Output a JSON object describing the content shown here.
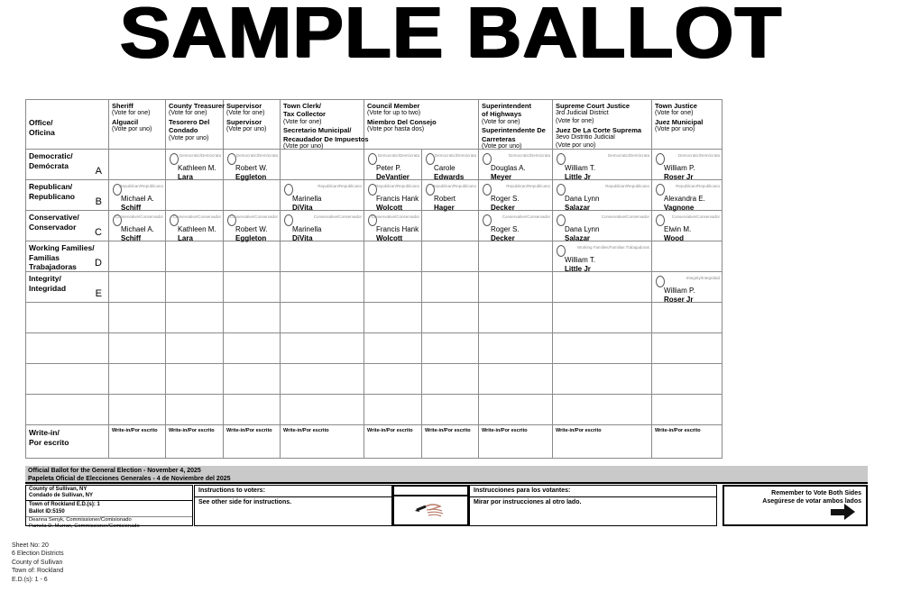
{
  "title": "SAMPLE BALLOT",
  "colors": {
    "bar_gray": "#c9c9c9",
    "grid_line": "#8a8a8a",
    "ink": "#000000"
  },
  "ballot": {
    "corner_lines": [
      "Office/",
      "Oficina"
    ],
    "column_order": [
      "sheriff",
      "treasurer",
      "supervisor",
      "clerk",
      "council1",
      "council2",
      "highways",
      "supreme",
      "justice"
    ],
    "columns": [
      {
        "id": "sheriff",
        "span": 1,
        "lines": [
          {
            "t": "Sheriff",
            "b": true
          },
          {
            "t": "(Vote for one)",
            "b": false
          },
          {
            "t": "Alguacil",
            "b": true
          },
          {
            "t": "(Vote por uno)",
            "b": false
          }
        ]
      },
      {
        "id": "treasurer",
        "span": 1,
        "lines": [
          {
            "t": "County Treasurer",
            "b": true
          },
          {
            "t": "(Vote for one)",
            "b": false
          },
          {
            "t": "Tesorero Del",
            "b": true
          },
          {
            "t": "Condado",
            "b": true
          },
          {
            "t": "(Vote por uno)",
            "b": false
          }
        ]
      },
      {
        "id": "supervisor",
        "span": 1,
        "lines": [
          {
            "t": "Supervisor",
            "b": true
          },
          {
            "t": "(Vote for one)",
            "b": false
          },
          {
            "t": "Supervisor",
            "b": true
          },
          {
            "t": "(Vote por uno)",
            "b": false
          }
        ]
      },
      {
        "id": "clerk",
        "span": 1,
        "lines": [
          {
            "t": "Town Clerk/",
            "b": true
          },
          {
            "t": "Tax Collector",
            "b": true
          },
          {
            "t": "(Vote for one)",
            "b": false
          },
          {
            "t": "Secretario Municipal/",
            "b": true
          },
          {
            "t": "Recaudador De Impuestos",
            "b": true
          },
          {
            "t": "(Vote por uno)",
            "b": false
          }
        ]
      },
      {
        "id": "council",
        "span": 2,
        "lines": [
          {
            "t": "Council Member",
            "b": true
          },
          {
            "t": "(Vote for up to two)",
            "b": false
          },
          {
            "t": "Miembro Del Consejo",
            "b": true
          },
          {
            "t": "(Vote por hasta dos)",
            "b": false
          }
        ]
      },
      {
        "id": "highways",
        "span": 1,
        "lines": [
          {
            "t": "Superintendent",
            "b": true
          },
          {
            "t": "of Highways",
            "b": true
          },
          {
            "t": "(Vote for one)",
            "b": false
          },
          {
            "t": "Superintendente De",
            "b": true
          },
          {
            "t": "Carreteras",
            "b": true
          },
          {
            "t": "(Vote por uno)",
            "b": false
          }
        ]
      },
      {
        "id": "supreme",
        "span": 1,
        "lines": [
          {
            "t": "Supreme Court Justice",
            "b": true
          },
          {
            "t": "3rd Judicial District",
            "b": false
          },
          {
            "t": "(Vote for one)",
            "b": false
          },
          {
            "t": "Juez De La Corte Suprema",
            "b": true
          },
          {
            "t": "3evo Distritio Judicial",
            "b": false
          },
          {
            "t": "(Vote por uno)",
            "b": false
          }
        ]
      },
      {
        "id": "justice",
        "span": 1,
        "lines": [
          {
            "t": "Town Justice",
            "b": true
          },
          {
            "t": "(Vote for one)",
            "b": false
          },
          {
            "t": "Juez Municipal",
            "b": true
          },
          {
            "t": "(Vote por uno)",
            "b": false
          }
        ]
      }
    ],
    "parties": [
      {
        "letter": "A",
        "label_lines": [
          "Democratic/",
          "Demócrata"
        ],
        "oval_label": "Democratic/Demócrata",
        "candidates": {
          "treasurer": [
            "Kathleen M.",
            "Lara"
          ],
          "supervisor": [
            "Robert W.",
            "Eggleton"
          ],
          "council1": [
            "Peter P.",
            "DeVantier"
          ],
          "council2": [
            "Carole",
            "Edwards"
          ],
          "highways": [
            "Douglas A.",
            "Meyer"
          ],
          "supreme": [
            "William T.",
            "Little Jr"
          ],
          "justice": [
            "William P.",
            "Roser Jr"
          ]
        }
      },
      {
        "letter": "B",
        "label_lines": [
          "Republican/",
          "Republicano"
        ],
        "oval_label": "Republican/Republicano",
        "candidates": {
          "sheriff": [
            "Michael A.",
            "Schiff"
          ],
          "clerk": [
            "Marinella",
            "DiVita"
          ],
          "council1": [
            "Francis Hank",
            "Wolcott"
          ],
          "council2": [
            "Robert",
            "Hager"
          ],
          "highways": [
            "Roger S.",
            "Decker"
          ],
          "supreme": [
            "Dana Lynn",
            "Salazar"
          ],
          "justice": [
            "Alexandra E.",
            "Vagnone"
          ]
        }
      },
      {
        "letter": "C",
        "label_lines": [
          "Conservative/",
          "Conservador"
        ],
        "oval_label": "Conservative/Conservador",
        "candidates": {
          "sheriff": [
            "Michael A.",
            "Schiff"
          ],
          "treasurer": [
            "Kathleen M.",
            "Lara"
          ],
          "supervisor": [
            "Robert W.",
            "Eggleton"
          ],
          "clerk": [
            "Marinella",
            "DiVita"
          ],
          "council1": [
            "Francis Hank",
            "Wolcott"
          ],
          "highways": [
            "Roger S.",
            "Decker"
          ],
          "supreme": [
            "Dana Lynn",
            "Salazar"
          ],
          "justice": [
            "Elwin M.",
            "Wood"
          ]
        }
      },
      {
        "letter": "D",
        "label_lines": [
          "Working Families/",
          "Familias Trabajadoras"
        ],
        "oval_label": "Working Families/Familias Trabajadoras",
        "candidates": {
          "supreme": [
            "William T.",
            "Little Jr"
          ]
        }
      },
      {
        "letter": "E",
        "label_lines": [
          "Integrity/",
          "Integridad"
        ],
        "oval_label": "Integrity/Integridad",
        "candidates": {
          "justice": [
            "William P.",
            "Roser Jr"
          ]
        }
      }
    ],
    "empty_row_count": 4,
    "write_in": {
      "label_lines": [
        "Write-in/",
        "Por escrito"
      ],
      "cell_label": "Write-in/Por escrito"
    }
  },
  "footer": {
    "official_en": "Official Ballot for the General Election - November 4, 2025",
    "official_es": "Papeleta Oficial de Elecciones Generales - 4 de Noviembre del 2025",
    "county_en": "County of Sullivan, NY",
    "county_es": "Condado de Sullivan, NY",
    "town_line": "Town of Rockland E.D.(s): 1",
    "ballot_id": "Ballot ID:5150",
    "commissioner1": "Deanna Senyk, Commissioner/Comisionado",
    "commissioner2": "Pamela D. Murran, Commissioner/Comisionado",
    "instructions_en_header": "Instructions to voters:",
    "instructions_en_body": "See other side for instructions.",
    "instructions_es_header": "Instrucciones para los votantes:",
    "instructions_es_body": "Mirar por instrucciones al otro lado.",
    "reminder_en": "Remember to Vote Both Sides",
    "reminder_es": "Asegúrese de votar ambos lados",
    "sheet": [
      "Sheet No: 20",
      "6 Election Districts",
      "County of Sullivan",
      "Town of: Rockland",
      "E.D.(s): 1 - 6"
    ]
  }
}
